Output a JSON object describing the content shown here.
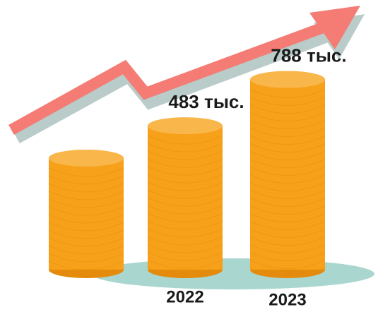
{
  "chart_data": {
    "type": "coin-stacks",
    "categories": [
      null,
      "2022",
      "2023"
    ],
    "values": [
      270,
      483,
      788
    ],
    "value_labels": [
      null,
      "483 тыс.",
      "788 тыс."
    ],
    "color": "#f7a11a"
  }
}
